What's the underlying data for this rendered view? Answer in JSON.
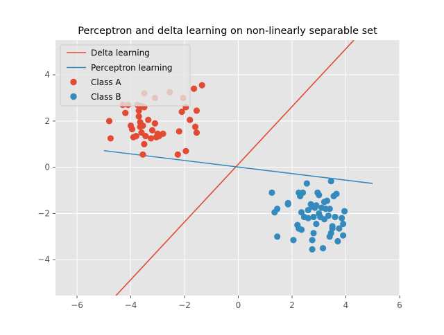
{
  "chart_data": {
    "type": "scatter",
    "title": "Perceptron and delta learning on non-linearly separable set",
    "xlabel": "",
    "ylabel": "",
    "xlim": [
      -6.8,
      6.0
    ],
    "ylim": [
      -5.55,
      5.5
    ],
    "xticks": [
      -6,
      -4,
      -2,
      0,
      2,
      4,
      6
    ],
    "yticks": [
      -4,
      -2,
      0,
      2,
      4
    ],
    "xtick_labels": [
      "−6",
      "−4",
      "−2",
      "0",
      "2",
      "4",
      "6"
    ],
    "ytick_labels": [
      "−4",
      "−2",
      "0",
      "2",
      "4"
    ],
    "grid": true,
    "legend_position": "upper-left",
    "background_color": "#e5e5e5",
    "lines": [
      {
        "name": "Delta learning",
        "color": "#e24a33",
        "x": [
          -4.55,
          4.3
        ],
        "y": [
          -5.55,
          5.5
        ]
      },
      {
        "name": "Perceptron learning",
        "color": "#348abd",
        "x": [
          -5.0,
          5.0
        ],
        "y": [
          0.72,
          -0.7
        ]
      }
    ],
    "series": [
      {
        "name": "Class A",
        "color": "#e24a33",
        "points": [
          [
            -4.2,
            2.35
          ],
          [
            -4.1,
            2.7
          ],
          [
            -4.0,
            1.8
          ],
          [
            -3.95,
            1.65
          ],
          [
            -3.9,
            1.3
          ],
          [
            -3.8,
            1.35
          ],
          [
            -3.75,
            2.7
          ],
          [
            -3.7,
            2.45
          ],
          [
            -3.7,
            2.2
          ],
          [
            -3.65,
            1.95
          ],
          [
            -3.65,
            1.75
          ],
          [
            -3.6,
            2.65
          ],
          [
            -3.6,
            1.5
          ],
          [
            -3.55,
            1.8
          ],
          [
            -3.5,
            2.6
          ],
          [
            -3.5,
            3.2
          ],
          [
            -3.45,
            1.35
          ],
          [
            -3.35,
            2.05
          ],
          [
            -3.25,
            1.25
          ],
          [
            -3.2,
            1.6
          ],
          [
            -3.1,
            3.0
          ],
          [
            -3.1,
            1.9
          ],
          [
            -3.05,
            1.3
          ],
          [
            -3.0,
            1.45
          ],
          [
            -2.95,
            1.35
          ],
          [
            -2.8,
            1.45
          ],
          [
            -2.55,
            3.25
          ],
          [
            -2.25,
            0.55
          ],
          [
            -2.2,
            1.55
          ],
          [
            -2.1,
            2.4
          ],
          [
            -2.05,
            3.0
          ],
          [
            -1.95,
            2.6
          ],
          [
            -1.95,
            0.7
          ],
          [
            -1.8,
            2.05
          ],
          [
            -1.65,
            3.4
          ],
          [
            -1.6,
            1.75
          ],
          [
            -1.55,
            2.45
          ],
          [
            -1.55,
            1.5
          ],
          [
            -1.35,
            3.55
          ],
          [
            -3.55,
            0.55
          ],
          [
            -3.5,
            1.0
          ],
          [
            -4.8,
            2.0
          ],
          [
            -4.75,
            1.25
          ],
          [
            -4.3,
            2.7
          ]
        ]
      },
      {
        "name": "Class B",
        "color": "#348abd",
        "points": [
          [
            1.25,
            -1.1
          ],
          [
            1.35,
            -1.95
          ],
          [
            1.45,
            -1.8
          ],
          [
            1.45,
            -3.0
          ],
          [
            1.85,
            -1.6
          ],
          [
            1.85,
            -1.55
          ],
          [
            2.05,
            -3.15
          ],
          [
            2.2,
            -2.5
          ],
          [
            2.25,
            -2.65
          ],
          [
            2.25,
            -1.1
          ],
          [
            2.3,
            -1.25
          ],
          [
            2.35,
            -1.95
          ],
          [
            2.35,
            -2.7
          ],
          [
            2.4,
            -1.1
          ],
          [
            2.45,
            -2.15
          ],
          [
            2.55,
            -0.7
          ],
          [
            2.6,
            -1.85
          ],
          [
            2.6,
            -2.2
          ],
          [
            2.7,
            -1.6
          ],
          [
            2.75,
            -1.7
          ],
          [
            2.75,
            -3.15
          ],
          [
            2.75,
            -3.55
          ],
          [
            2.8,
            -2.15
          ],
          [
            2.8,
            -2.85
          ],
          [
            2.85,
            -1.75
          ],
          [
            2.9,
            -1.65
          ],
          [
            2.9,
            -2.45
          ],
          [
            2.95,
            -1.1
          ],
          [
            3.0,
            -1.2
          ],
          [
            3.0,
            -2.0
          ],
          [
            3.05,
            -2.15
          ],
          [
            3.1,
            -1.75
          ],
          [
            3.15,
            -3.5
          ],
          [
            3.2,
            -1.5
          ],
          [
            3.2,
            -2.25
          ],
          [
            3.25,
            -1.8
          ],
          [
            3.3,
            -1.45
          ],
          [
            3.35,
            -2.1
          ],
          [
            3.4,
            -3.0
          ],
          [
            3.4,
            -1.8
          ],
          [
            3.45,
            -0.6
          ],
          [
            3.45,
            -2.85
          ],
          [
            3.5,
            -2.55
          ],
          [
            3.5,
            -2.65
          ],
          [
            3.55,
            -1.25
          ],
          [
            3.6,
            -2.15
          ],
          [
            3.65,
            -1.15
          ],
          [
            3.7,
            -3.2
          ],
          [
            3.75,
            -2.65
          ],
          [
            3.85,
            -2.2
          ],
          [
            3.9,
            -2.45
          ],
          [
            3.9,
            -2.95
          ],
          [
            3.95,
            -1.9
          ]
        ]
      }
    ]
  }
}
